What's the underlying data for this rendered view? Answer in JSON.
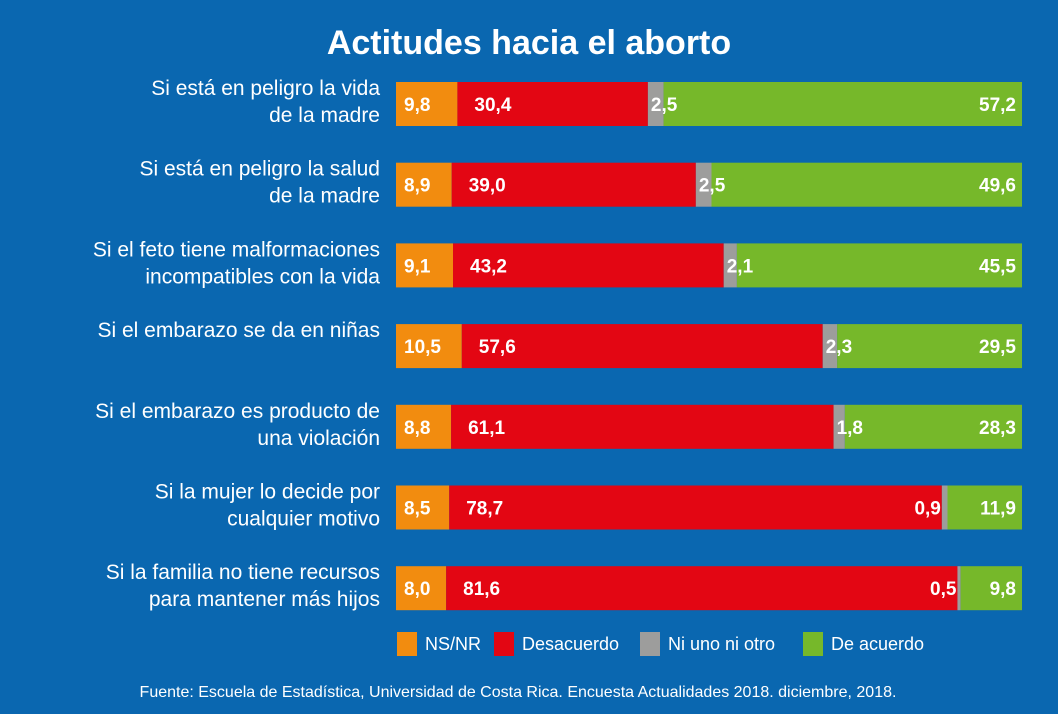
{
  "chart_data": {
    "type": "bar",
    "orientation": "horizontal",
    "stacked": true,
    "title": "Actitudes hacia el aborto",
    "categories": [
      [
        "Si está en peligro la vida",
        "de la madre"
      ],
      [
        "Si está en peligro la salud",
        "de la madre"
      ],
      [
        "Si el feto tiene malformaciones",
        "incompatibles con la vida"
      ],
      [
        "Si el embarazo se da en niñas"
      ],
      [
        "Si el embarazo es producto de",
        "una violación"
      ],
      [
        "Si la mujer lo decide por",
        "cualquier motivo"
      ],
      [
        "Si la familia no tiene recursos",
        "para mantener más hijos"
      ]
    ],
    "series": [
      {
        "name": "NS/NR",
        "color": "#f28c0f",
        "values": [
          9.8,
          8.9,
          9.1,
          10.5,
          8.8,
          8.5,
          8.0
        ],
        "labels": [
          "9,8",
          "8,9",
          "9,1",
          "10,5",
          "8,8",
          "8,5",
          "8,0"
        ]
      },
      {
        "name": "Desacuerdo",
        "color": "#e30613",
        "values": [
          30.4,
          39.0,
          43.2,
          57.6,
          61.1,
          78.7,
          81.6
        ],
        "labels": [
          "30,4",
          "39,0",
          "43,2",
          "57,6",
          "61,1",
          "78,7",
          "81,6"
        ]
      },
      {
        "name": "Ni uno ni otro",
        "color": "#9d9d9c",
        "values": [
          2.5,
          2.5,
          2.1,
          2.3,
          1.8,
          0.9,
          0.5
        ],
        "labels": [
          "2,5",
          "2,5",
          "2,1",
          "2,3",
          "1,8",
          "0,9",
          "0,5"
        ]
      },
      {
        "name": "De acuerdo",
        "color": "#76b82a",
        "values": [
          57.2,
          49.6,
          45.5,
          29.5,
          28.3,
          11.9,
          9.8
        ],
        "labels": [
          "57,2",
          "49,6",
          "45,5",
          "29,5",
          "28,3",
          "11,9",
          "9,8"
        ]
      }
    ],
    "xlim": [
      0,
      100
    ],
    "grid": false,
    "legend": "bottom"
  },
  "source": "Fuente: Escuela de Estadística, Universidad de Costa Rica. Encuesta Actualidades 2018. diciembre, 2018."
}
